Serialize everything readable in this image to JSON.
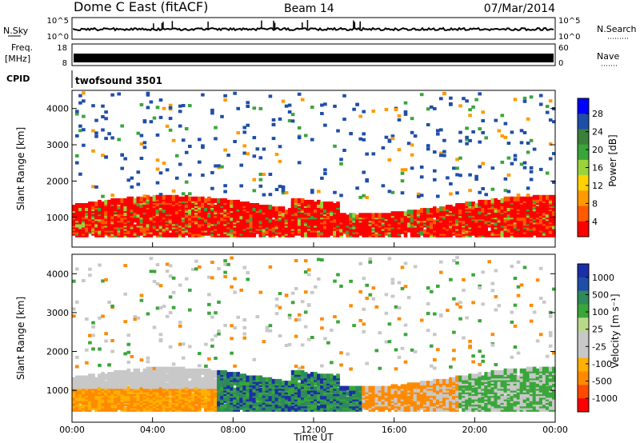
{
  "header": {
    "site": "Dome C East (fitACF)",
    "beam": "Beam 14",
    "date": "07/Mar/2014"
  },
  "top_panels": {
    "nsky_label": "N.Sky",
    "nsky_ticks": [
      "10^5",
      "10^0"
    ],
    "nsearch_label": "N.Search",
    "nsearch_ticks": [
      "10^5",
      "10^0"
    ],
    "freq_label": "Freq.",
    "freq_unit": "[MHz]",
    "freq_ticks": [
      "18",
      "8"
    ],
    "nave_label": "Nave",
    "nave_ticks": [
      "60",
      "0"
    ],
    "cpid_label": "CPID",
    "cpid_value": "twofsound 3501"
  },
  "colors": {
    "power_scale": [
      "#0000ff",
      "#1f4ea8",
      "#3a7f3a",
      "#3aa63a",
      "#9bd43a",
      "#ffd300",
      "#ff9a00",
      "#ff5a00",
      "#ff0000"
    ],
    "velocity_scale": [
      "#1a2ea8",
      "#1f4ea8",
      "#2e8a5a",
      "#3aa63a",
      "#b9d98a",
      "#c8c8c8",
      "#c8c8c8",
      "#ffb000",
      "#ff8a00",
      "#ff4a00",
      "#ff0000"
    ]
  },
  "chart_data": [
    {
      "type": "heatmap",
      "title": "Power",
      "xlabel": "",
      "ylabel": "Slant Range [km]",
      "xlim": [
        "00:00",
        "00:00"
      ],
      "ylim": [
        180,
        4500
      ],
      "yticks": [
        1000,
        2000,
        3000,
        4000
      ],
      "colorbar": {
        "label": "Power [dB]",
        "ticks": [
          "28",
          "24",
          "20",
          "16",
          "12",
          "8",
          "4"
        ],
        "range": [
          0,
          30
        ]
      },
      "grid": false
    },
    {
      "type": "heatmap",
      "title": "Velocity",
      "xlabel": "Time UT",
      "ylabel": "Slant Range [km]",
      "xticks": [
        "00:00",
        "04:00",
        "08:00",
        "12:00",
        "16:00",
        "20:00",
        "00:00"
      ],
      "ylim": [
        180,
        4500
      ],
      "yticks": [
        1000,
        2000,
        3000,
        4000
      ],
      "colorbar": {
        "label": "Velocity [m s⁻¹]",
        "ticks": [
          "1000",
          "500",
          "100",
          "25",
          "-25",
          "-100",
          "-500",
          "-1000"
        ],
        "range": [
          -1000,
          1000
        ]
      },
      "grid": false
    }
  ]
}
